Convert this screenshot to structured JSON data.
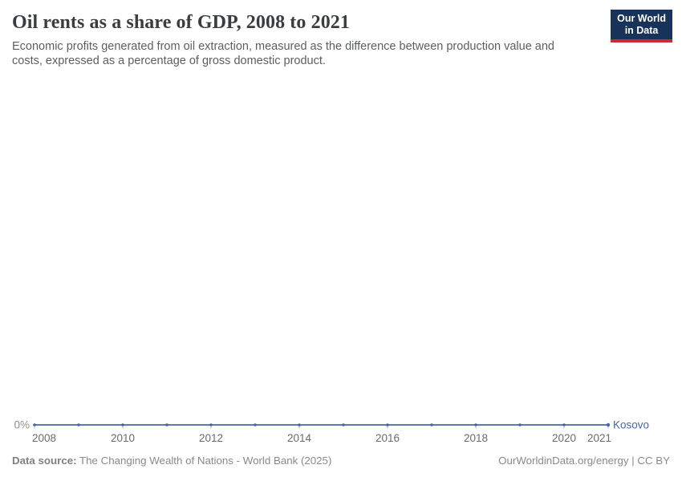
{
  "header": {
    "title": "Oil rents as a share of GDP, 2008 to 2021",
    "subtitle": "Economic profits generated from oil extraction, measured as the difference between production value and costs, expressed as a percentage of gross domestic product."
  },
  "logo": {
    "line1": "Our World",
    "line2": "in Data",
    "bg_color": "#18335a",
    "stripe_color": "#cc2a33"
  },
  "chart_data": {
    "type": "line",
    "title": "Oil rents as a share of GDP, 2008 to 2021",
    "xlabel": "",
    "ylabel": "",
    "x": [
      2008,
      2009,
      2010,
      2011,
      2012,
      2013,
      2014,
      2015,
      2016,
      2017,
      2018,
      2019,
      2020,
      2021
    ],
    "series": [
      {
        "name": "Kosovo",
        "color": "#4A65A5",
        "values": [
          0,
          0,
          0,
          0,
          0,
          0,
          0,
          0,
          0,
          0,
          0,
          0,
          0,
          0
        ]
      }
    ],
    "x_ticks": [
      2008,
      2010,
      2012,
      2014,
      2016,
      2018,
      2020,
      2021
    ],
    "y_ticks": [
      {
        "value": 0,
        "label": "0%"
      }
    ],
    "ylim": [
      0,
      0
    ],
    "grid": false,
    "legend_position": "line-end-label",
    "axis_label_color": "#6b6b6b",
    "y_label_color": "#8f8f8f",
    "tick_mark_color": "#a9b1c2"
  },
  "footer": {
    "source_label": "Data source:",
    "source_text": " The Changing Wealth of Nations - World Bank (2025)",
    "rights": "OurWorldinData.org/energy | CC BY"
  }
}
